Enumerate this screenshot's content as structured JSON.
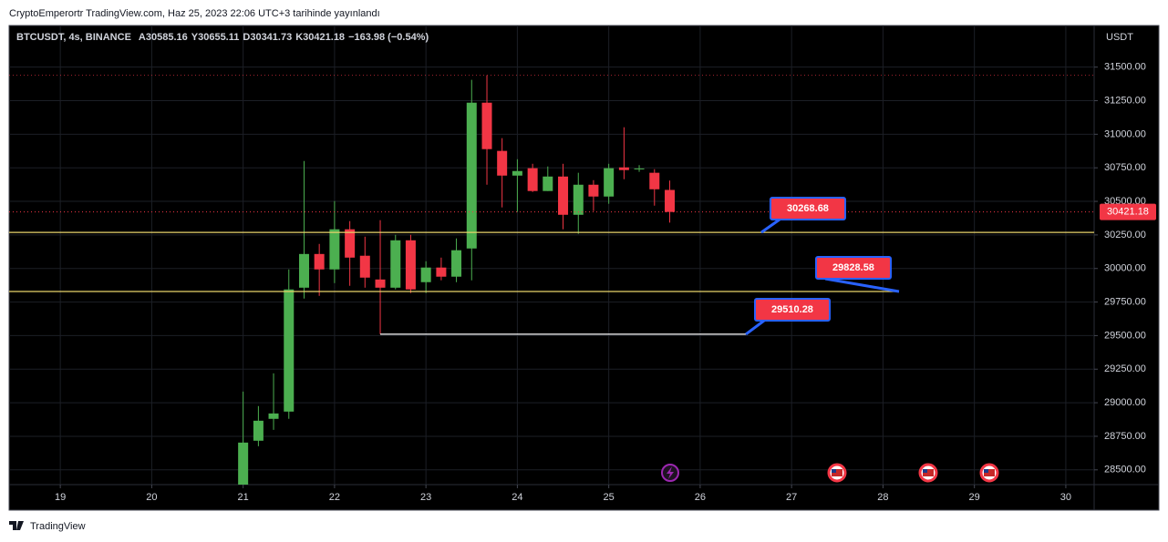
{
  "header": "CryptoEmperortr TradingView.com, Haz 25, 2023 22:06 UTC+3 tarihinde yayınlandı",
  "footer": "TradingView",
  "chart_data": {
    "type": "candlestick",
    "symbol": "BTCUSDT, 4s, BINANCE",
    "ohlc_labels": [
      "A",
      "Y",
      "D",
      "K"
    ],
    "change": "−163.98 (−0.54%)",
    "y_axis_label": "USDT",
    "x": [
      21,
      21.167,
      21.333,
      21.5,
      21.667,
      21.833,
      22,
      22.167,
      22.333,
      22.5,
      22.667,
      22.833,
      23,
      23.167,
      23.333,
      23.5,
      23.667,
      23.833,
      24,
      24.167,
      24.333,
      24.5,
      24.667,
      24.833,
      25,
      25.167,
      25.333,
      25.5,
      25.667
    ],
    "open": [
      28350,
      28717,
      28880,
      28934,
      29857,
      30108,
      29993,
      30292,
      30095,
      29918,
      29857,
      30210,
      29898,
      30007,
      29939,
      30149,
      31235,
      30876,
      30692,
      30747,
      30577,
      30685,
      30400,
      30624,
      30536,
      30753,
      30740,
      30713,
      30585.16
    ],
    "high": [
      29083,
      28975,
      29219,
      29993,
      30801,
      30183,
      30502,
      30353,
      30237,
      30360,
      30251,
      30251,
      30054,
      30081,
      30224,
      31405,
      31439,
      30971,
      30814,
      30780,
      30760,
      30780,
      30713,
      30658,
      30780,
      31052,
      30770,
      30740,
      30655.11
    ],
    "low": [
      28300,
      28676,
      28798,
      28880,
      29776,
      29796,
      29891,
      29871,
      29857,
      29510.28,
      29844,
      29817,
      29817,
      29912,
      29898,
      29912,
      30624,
      30455,
      30421,
      30570,
      30577,
      30292,
      30258,
      30428,
      30482,
      30665,
      30720,
      30468,
      30341.73
    ],
    "close": [
      28703,
      28866,
      28920,
      29844,
      30108,
      29993,
      30292,
      30081,
      29932,
      29857,
      30210,
      29844,
      30007,
      29939,
      30136,
      31235,
      30889,
      30692,
      30726,
      30577,
      30685,
      30400,
      30624,
      30536,
      30747,
      30733,
      30745,
      30590,
      30421.18
    ],
    "up_color": "#4caf50",
    "down_color": "#f23645",
    "levels": [
      30268.68,
      29828.58,
      29510.28
    ],
    "level_colors": [
      "#e8d36a",
      "#e8d36a",
      "#ffffff"
    ],
    "xlim": [
      18.44,
      30.31
    ],
    "xticks": [
      19,
      20,
      21,
      22,
      23,
      24,
      25,
      26,
      27,
      28,
      29,
      30
    ],
    "ylim": [
      28390,
      31810
    ],
    "yticks": [
      {
        "value": 28500,
        "label": "28500.00"
      },
      {
        "value": 28750,
        "label": "28750.00"
      },
      {
        "value": 29000,
        "label": "29000.00"
      },
      {
        "value": 29250,
        "label": "29250.00"
      },
      {
        "value": 29500,
        "label": "29500.00"
      },
      {
        "value": 29750,
        "label": "29750.00"
      },
      {
        "value": 30000,
        "label": "30000.00"
      },
      {
        "value": 30250,
        "label": "30250.00"
      },
      {
        "value": 30500,
        "label": "30500.00"
      },
      {
        "value": 30750,
        "label": "30750.00"
      },
      {
        "value": 31000,
        "label": "31000.00"
      },
      {
        "value": 31250,
        "label": "31250.00"
      },
      {
        "value": 31500,
        "label": "31500.00"
      }
    ],
    "grid": true
  }
}
